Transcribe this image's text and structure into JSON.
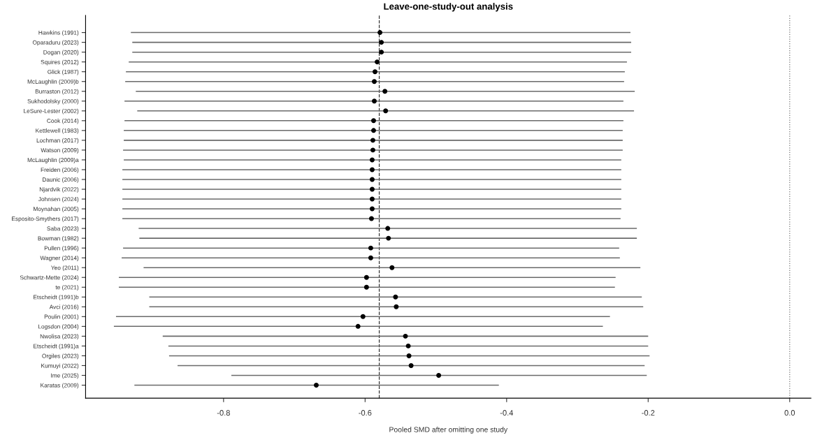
{
  "chart_data": {
    "type": "scatter",
    "orientation": "horizontal",
    "title": "Leave-one-study-out analysis",
    "xlabel": "Pooled SMD after omitting one study",
    "categories": [
      "Hawkins (1991)",
      "Oparaduru (2023)",
      "Dogan (2020)",
      "Squires (2012)",
      "Glick (1987)",
      "McLaughlin (2009)b",
      "Burraston (2012)",
      "Sukhodolsky (2000)",
      "LeSure-Lester (2002)",
      "Cook (2014)",
      "Kettlewell (1983)",
      "Lochman (2017)",
      "Watson (2009)",
      "McLaughlin (2009)a",
      "Freiden (2006)",
      "Daunic (2006)",
      "Njardvik (2022)",
      "Johnsen (2024)",
      "Moynahan (2005)",
      "Esposito-Smythers (2017)",
      "Saba (2023)",
      "Bowman (1982)",
      "Pullen (1996)",
      "Wagner (2014)",
      "Yeo (2011)",
      "Schwartz-Mette (2024)",
      "te (2021)",
      "Etscheidt (1991)b",
      "Avci (2016)",
      "Poulin (2001)",
      "Logsdon (2004)",
      "Nwolisa (2023)",
      "Etscheidt (1991)a",
      "Orgiles (2023)",
      "Kumuyi (2022)",
      "Ime (2025)",
      "Karatas (2009)"
    ],
    "series": [
      {
        "color": "#000000",
        "values": [
          -0.579,
          -0.577,
          -0.577,
          -0.583,
          -0.586,
          -0.587,
          -0.572,
          -0.587,
          -0.571,
          -0.588,
          -0.588,
          -0.589,
          -0.589,
          -0.59,
          -0.59,
          -0.59,
          -0.59,
          -0.59,
          -0.59,
          -0.591,
          -0.568,
          -0.567,
          -0.592,
          -0.592,
          -0.562,
          -0.598,
          -0.598,
          -0.557,
          -0.556,
          -0.603,
          -0.61,
          -0.543,
          -0.539,
          -0.538,
          -0.535,
          -0.496,
          -0.669
        ],
        "errors": [
          [
            -0.931,
            -0.225
          ],
          [
            -0.929,
            -0.224
          ],
          [
            -0.929,
            -0.224
          ],
          [
            -0.934,
            -0.23
          ],
          [
            -0.938,
            -0.233
          ],
          [
            -0.939,
            -0.234
          ],
          [
            -0.924,
            -0.219
          ],
          [
            -0.94,
            -0.235
          ],
          [
            -0.922,
            -0.22
          ],
          [
            -0.94,
            -0.235
          ],
          [
            -0.941,
            -0.236
          ],
          [
            -0.941,
            -0.236
          ],
          [
            -0.942,
            -0.236
          ],
          [
            -0.941,
            -0.238
          ],
          [
            -0.943,
            -0.238
          ],
          [
            -0.943,
            -0.238
          ],
          [
            -0.943,
            -0.238
          ],
          [
            -0.943,
            -0.238
          ],
          [
            -0.943,
            -0.238
          ],
          [
            -0.943,
            -0.239
          ],
          [
            -0.92,
            -0.216
          ],
          [
            -0.919,
            -0.216
          ],
          [
            -0.942,
            -0.241
          ],
          [
            -0.944,
            -0.24
          ],
          [
            -0.913,
            -0.211
          ],
          [
            -0.948,
            -0.246
          ],
          [
            -0.948,
            -0.247
          ],
          [
            -0.905,
            -0.209
          ],
          [
            -0.905,
            -0.207
          ],
          [
            -0.952,
            -0.254
          ],
          [
            -0.955,
            -0.264
          ],
          [
            -0.886,
            -0.2
          ],
          [
            -0.878,
            -0.2
          ],
          [
            -0.877,
            -0.198
          ],
          [
            -0.865,
            -0.205
          ],
          [
            -0.789,
            -0.202
          ],
          [
            -0.926,
            -0.411
          ]
        ]
      }
    ],
    "xlim": [
      -0.995,
      0.03
    ],
    "xticks": [
      -0.8,
      -0.6,
      -0.4,
      -0.2,
      {
        "value": 0,
        "label": "0.0"
      }
    ],
    "ref_lines": [
      {
        "axis": "x",
        "value": -0.58,
        "line_style": "dashed",
        "color": "#333333"
      },
      {
        "axis": "x",
        "value": 0.0,
        "line_style": "dotted",
        "color": "#777777"
      }
    ],
    "marker": "circle",
    "grid": false,
    "legend": false
  }
}
